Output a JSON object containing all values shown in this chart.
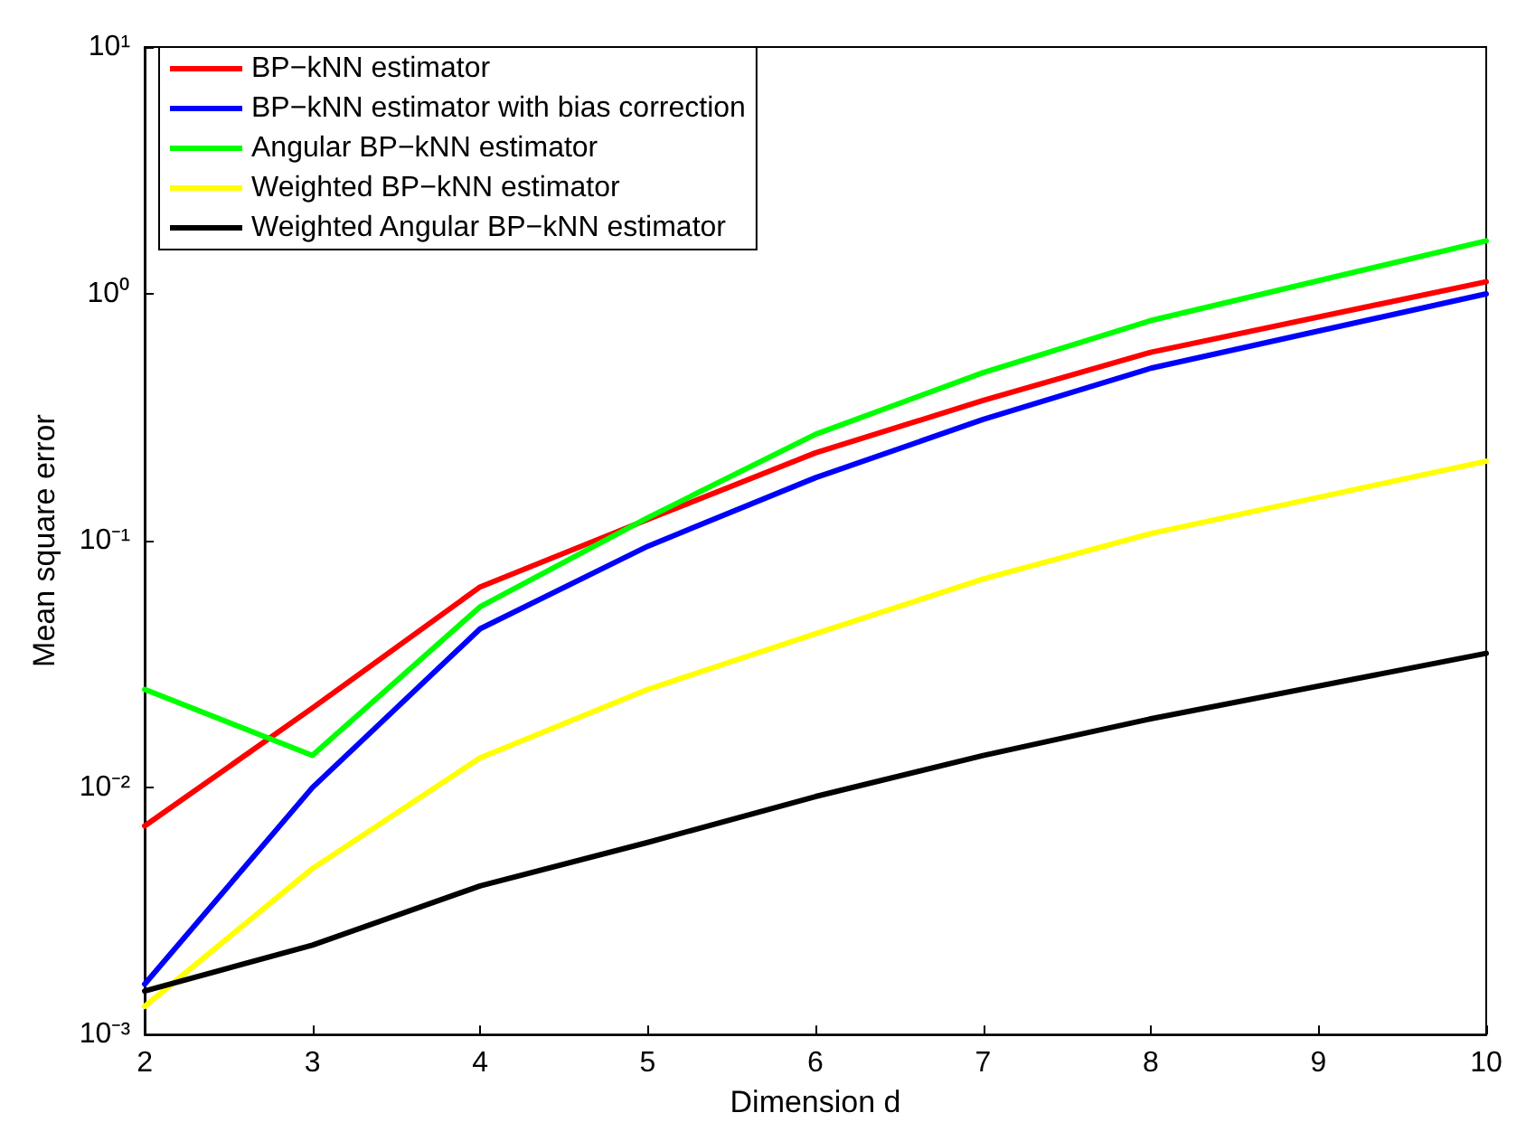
{
  "chart_data": {
    "type": "line",
    "xlabel": "Dimension d",
    "ylabel": "Mean square error",
    "x": [
      2,
      3,
      4,
      5,
      6,
      7,
      8,
      10
    ],
    "series": [
      {
        "name": "BP−kNN estimator",
        "color": "#ff0000",
        "values": [
          0.007,
          0.021,
          0.065,
          0.122,
          0.227,
          0.37,
          0.58,
          1.12
        ]
      },
      {
        "name": "BP−kNN estimator with bias correction",
        "color": "#0000ff",
        "values": [
          0.0016,
          0.01,
          0.044,
          0.095,
          0.18,
          0.31,
          0.5,
          1.0
        ]
      },
      {
        "name": "Angular BP−kNN estimator",
        "color": "#00ff00",
        "values": [
          0.025,
          0.0135,
          0.054,
          0.124,
          0.27,
          0.48,
          0.78,
          1.64
        ]
      },
      {
        "name": "Weighted BP−kNN estimator",
        "color": "#ffff00",
        "values": [
          0.0013,
          0.0047,
          0.0132,
          0.025,
          0.042,
          0.07,
          0.107,
          0.21
        ]
      },
      {
        "name": "Weighted Angular BP−kNN estimator",
        "color": "#000000",
        "values": [
          0.0015,
          0.0023,
          0.004,
          0.006,
          0.0092,
          0.0135,
          0.019,
          0.035
        ]
      }
    ],
    "xlim": [
      2,
      10
    ],
    "xticks": [
      2,
      3,
      4,
      5,
      6,
      7,
      8,
      9,
      10
    ],
    "ylim": [
      0.001,
      10
    ],
    "yticks": [
      {
        "value": 0.001,
        "label": "10⁻³"
      },
      {
        "value": 0.01,
        "label": "10⁻²"
      },
      {
        "value": 0.1,
        "label": "10⁻¹"
      },
      {
        "value": 1,
        "label": "10⁰"
      },
      {
        "value": 10,
        "label": "10¹"
      }
    ],
    "log": "y",
    "grid": false,
    "legend": "top left",
    "marker": "none",
    "line_style": "solid"
  }
}
